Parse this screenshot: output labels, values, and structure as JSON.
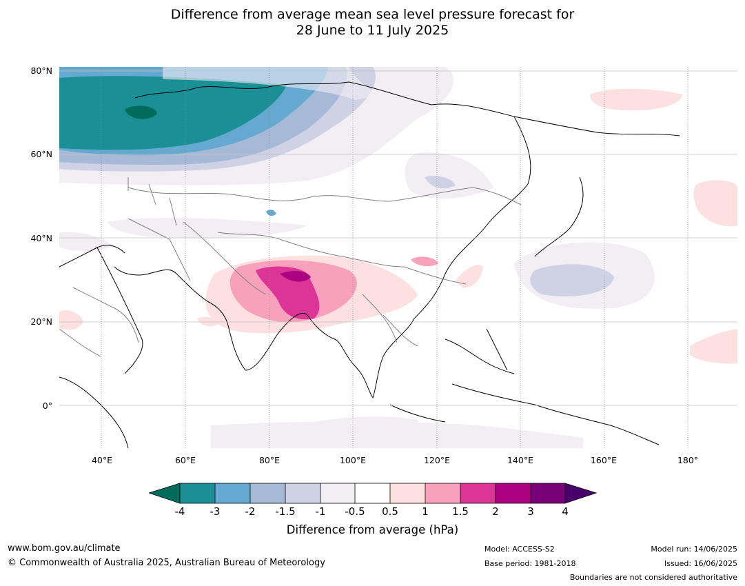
{
  "title": {
    "line1": "Difference from average mean sea level pressure forecast for",
    "line2": "28 June to 11 July 2025"
  },
  "map": {
    "projection": "equirectangular",
    "lon_range": [
      30,
      191
    ],
    "lat_range": [
      -10,
      81
    ],
    "lat_labels": [
      "80°N",
      "60°N",
      "40°N",
      "20°N",
      "0°"
    ],
    "lon_labels": [
      "40°E",
      "60°E",
      "80°E",
      "100°E",
      "120°E",
      "140°E",
      "160°E",
      "180°"
    ],
    "gridlines": true
  },
  "colorbar": {
    "label": "Difference from average (hPa)",
    "ticks": [
      "-4",
      "-3",
      "-2",
      "-1.5",
      "-1",
      "-0.5",
      "0.5",
      "1",
      "1.5",
      "2",
      "3",
      "4"
    ],
    "colors": {
      "under": "#006b5a",
      "bins": [
        "#1a8f96",
        "#66a9d0",
        "#a6bad8",
        "#cfd1e5",
        "#f2eef4",
        "#ffffff",
        "#fde0e0",
        "#f7a1bc",
        "#dd3597",
        "#ac0180",
        "#790077"
      ],
      "over": "#4a006a"
    }
  },
  "footer": {
    "url": "www.bom.gov.au/climate",
    "copyright": "© Commonwealth of Australia 2025, Australian Bureau of Meteorology",
    "model": "Model: ACCESS-S2",
    "base_period": "Base period: 1981-2018",
    "model_run": "Model run: 14/06/2025",
    "issued": "Issued: 16/06/2025",
    "disclaimer": "Boundaries are not considered authoritative"
  }
}
